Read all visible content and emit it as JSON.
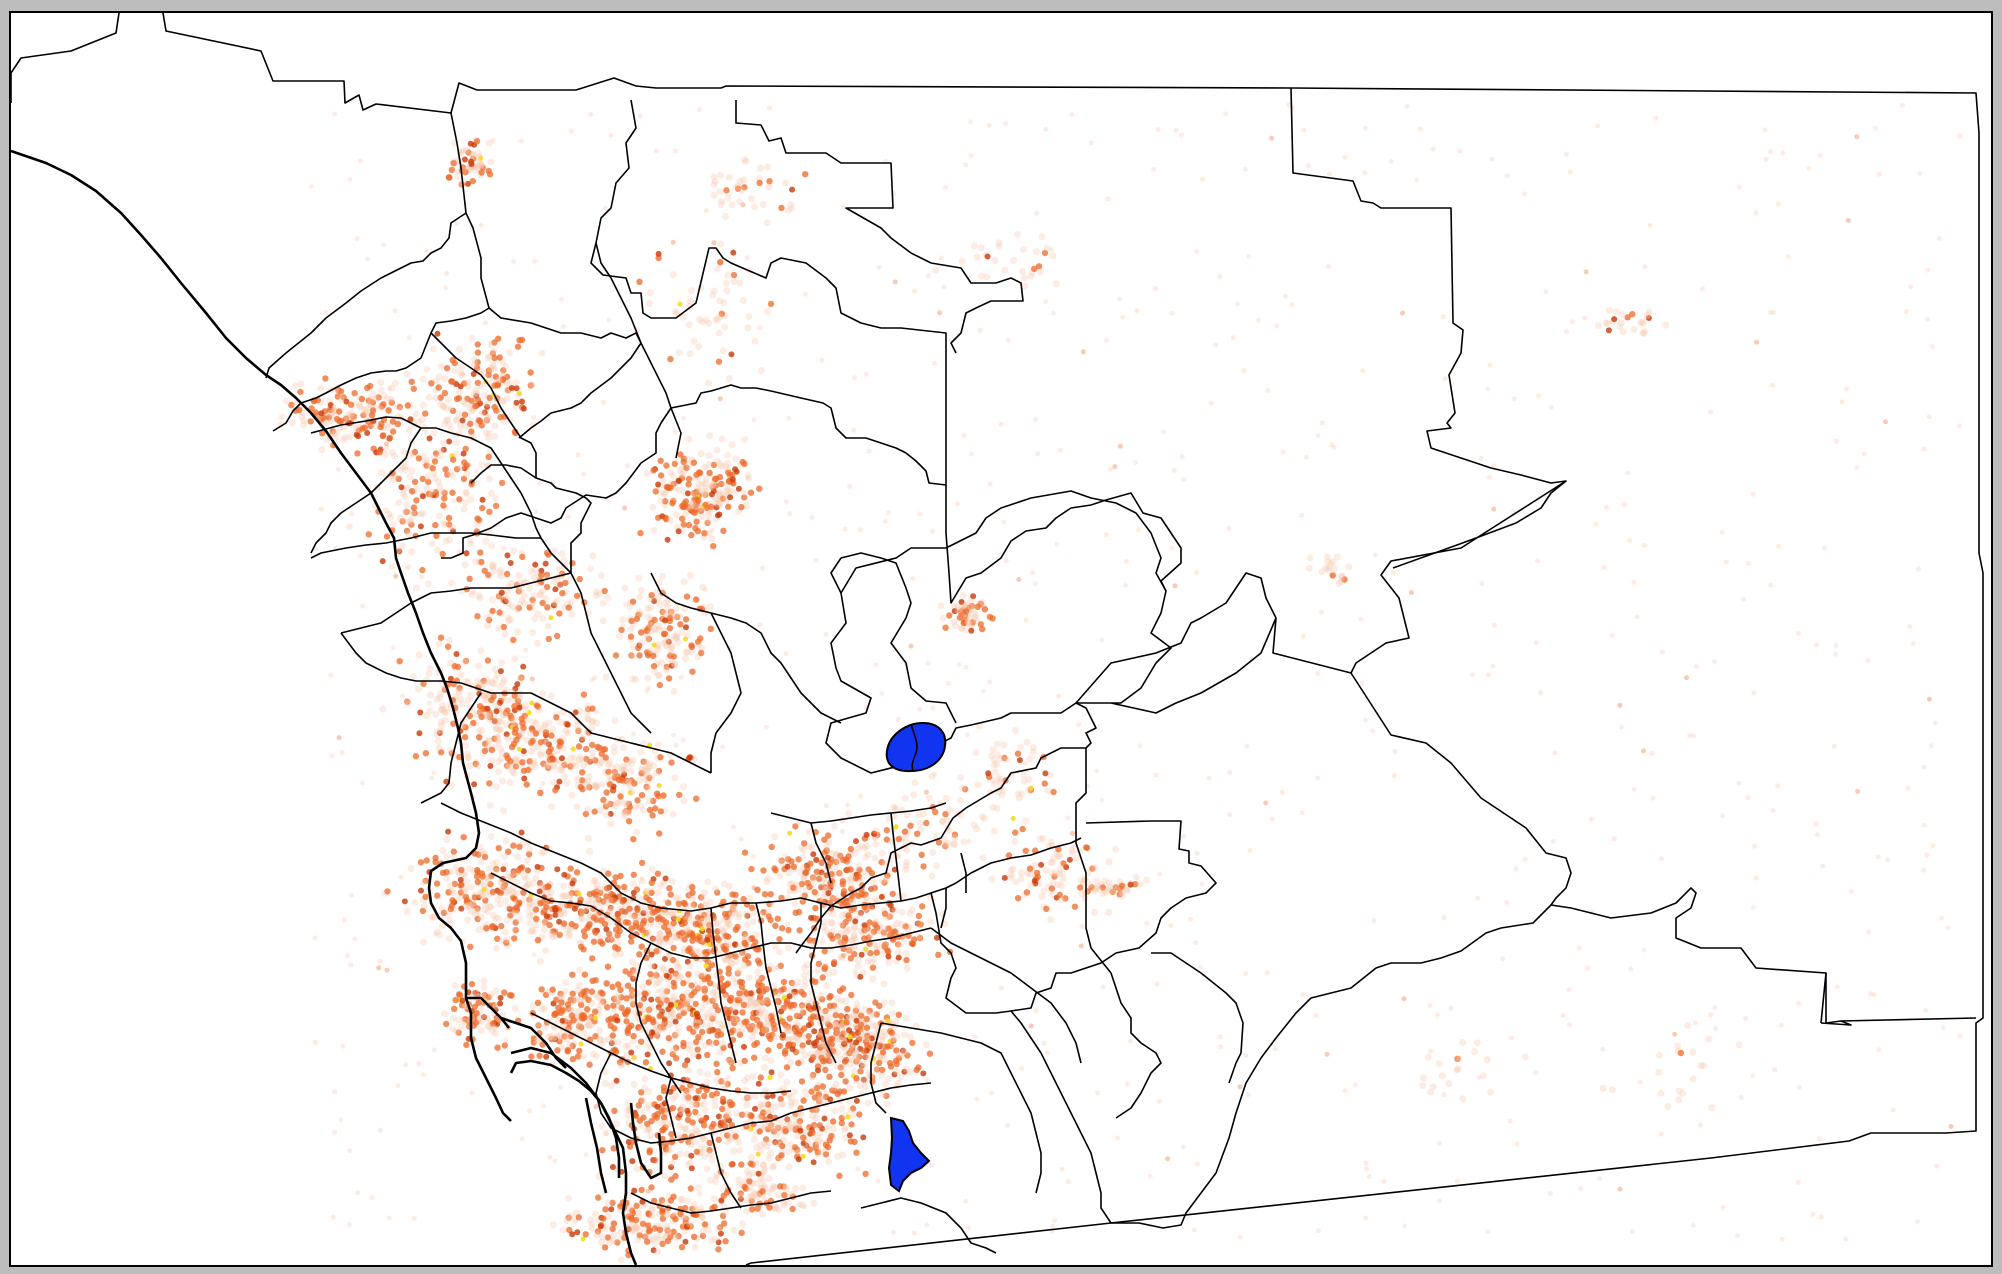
{
  "map": {
    "type": "point-density-map",
    "colors": {
      "background": "#ffffff",
      "frame": "#bdbdbd",
      "boundary": "#000000",
      "water": "#1034f0",
      "points_light": "#f7c9b0",
      "points_mid": "#ee6a2a",
      "points_dark": "#c93a08",
      "points_hot": "#f6dc16"
    },
    "features": {
      "water_bodies": [
        "lake-north",
        "lake-south"
      ],
      "layers": [
        "region-boundaries",
        "coastline",
        "incident-points"
      ]
    }
  }
}
